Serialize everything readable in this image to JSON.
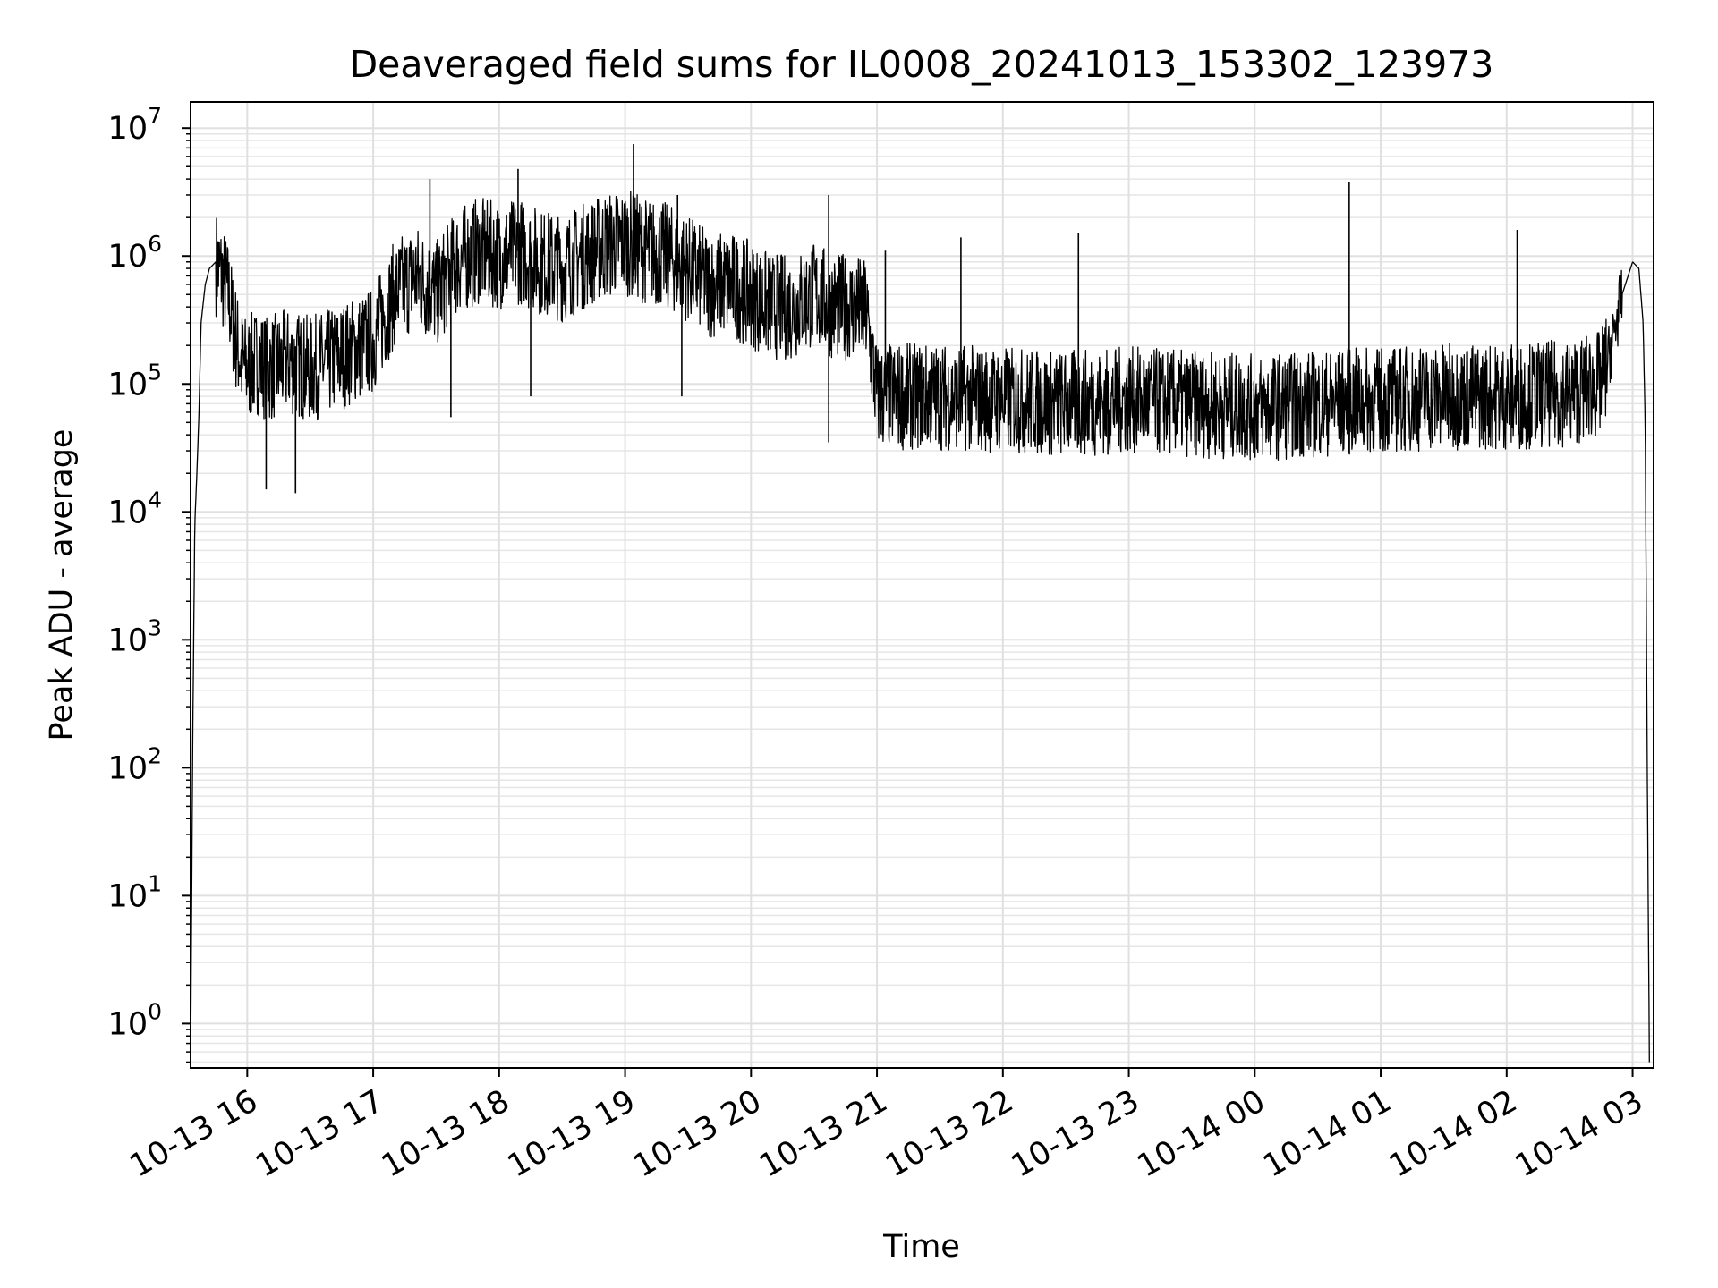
{
  "chart_data": {
    "type": "line",
    "title": "Deaveraged field sums for IL0008_20241013_153302_123973",
    "xlabel": "Time",
    "ylabel": "Peak ADU - average",
    "yscale": "log",
    "ylim": [
      0.45,
      16000000
    ],
    "xlim": [
      "2024-10-13 15:33",
      "2024-10-14 03:10"
    ],
    "x_ticks": [
      "10-13 16",
      "10-13 17",
      "10-13 18",
      "10-13 19",
      "10-13 20",
      "10-13 21",
      "10-13 22",
      "10-13 23",
      "10-14 00",
      "10-14 01",
      "10-14 02",
      "10-14 03"
    ],
    "y_ticks": [
      {
        "base": "10",
        "exp": "0",
        "value": 1
      },
      {
        "base": "10",
        "exp": "1",
        "value": 10
      },
      {
        "base": "10",
        "exp": "2",
        "value": 100
      },
      {
        "base": "10",
        "exp": "3",
        "value": 1000
      },
      {
        "base": "10",
        "exp": "4",
        "value": 10000
      },
      {
        "base": "10",
        "exp": "5",
        "value": 100000
      },
      {
        "base": "10",
        "exp": "6",
        "value": 1000000
      },
      {
        "base": "10",
        "exp": "7",
        "value": 10000000
      }
    ],
    "grid": true,
    "series": [
      {
        "color": "#000000",
        "x": [
          "2024-10-13 15:33",
          "2024-10-13 15:34",
          "2024-10-13 15:35",
          "2024-10-13 15:36",
          "2024-10-13 15:37",
          "2024-10-13 15:38",
          "2024-10-13 15:40",
          "2024-10-13 15:42",
          "2024-10-13 15:45",
          "2024-10-13 15:48",
          "2024-10-13 15:51",
          "2024-10-13 15:54",
          "2024-10-13 15:57",
          "2024-10-13 16:00",
          "2024-10-13 16:05",
          "2024-10-13 16:10",
          "2024-10-13 16:15",
          "2024-10-13 16:20",
          "2024-10-13 16:30",
          "2024-10-13 16:40",
          "2024-10-13 16:50",
          "2024-10-13 17:00",
          "2024-10-13 17:10",
          "2024-10-13 17:20",
          "2024-10-13 17:30",
          "2024-10-13 17:40",
          "2024-10-13 17:50",
          "2024-10-13 18:00",
          "2024-10-13 18:10",
          "2024-10-13 18:20",
          "2024-10-13 18:30",
          "2024-10-13 18:40",
          "2024-10-13 18:50",
          "2024-10-13 19:00",
          "2024-10-13 19:10",
          "2024-10-13 19:20",
          "2024-10-13 19:30",
          "2024-10-13 19:40",
          "2024-10-13 19:50",
          "2024-10-13 20:00",
          "2024-10-13 20:10",
          "2024-10-13 20:20",
          "2024-10-13 20:30",
          "2024-10-13 20:40",
          "2024-10-13 20:50",
          "2024-10-13 20:55",
          "2024-10-13 21:00",
          "2024-10-13 21:30",
          "2024-10-13 22:00",
          "2024-10-13 22:30",
          "2024-10-13 23:00",
          "2024-10-13 23:30",
          "2024-10-14 00:00",
          "2024-10-14 00:30",
          "2024-10-14 01:00",
          "2024-10-14 01:30",
          "2024-10-14 02:00",
          "2024-10-14 02:30",
          "2024-10-14 02:45",
          "2024-10-14 02:50",
          "2024-10-14 02:55",
          "2024-10-14 03:00",
          "2024-10-14 03:03",
          "2024-10-14 03:05",
          "2024-10-14 03:06",
          "2024-10-14 03:07",
          "2024-10-14 03:08"
        ],
        "y": [
          0.5,
          150,
          8000,
          20000,
          60000,
          300000,
          600000,
          800000,
          900000,
          700000,
          500000,
          250000,
          150000,
          130000,
          150000,
          130000,
          140000,
          150000,
          130000,
          150000,
          180000,
          220000,
          500000,
          700000,
          500000,
          900000,
          1100000,
          1000000,
          1100000,
          900000,
          800000,
          1000000,
          1200000,
          1300000,
          1100000,
          1000000,
          800000,
          600000,
          600000,
          500000,
          400000,
          400000,
          500000,
          400000,
          400000,
          350000,
          80000,
          80000,
          75000,
          70000,
          75000,
          70000,
          65000,
          70000,
          75000,
          80000,
          80000,
          85000,
          100000,
          200000,
          500000,
          900000,
          800000,
          300000,
          50000,
          100,
          0.5
        ],
        "spikes": [
          {
            "x": "2024-10-13 15:46",
            "y": 1300000
          },
          {
            "x": "2024-10-13 16:09",
            "y": 15000
          },
          {
            "x": "2024-10-13 16:23",
            "y": 14000
          },
          {
            "x": "2024-10-13 17:27",
            "y": 4000000
          },
          {
            "x": "2024-10-13 17:37",
            "y": 55000
          },
          {
            "x": "2024-10-13 18:09",
            "y": 4800000
          },
          {
            "x": "2024-10-13 18:15",
            "y": 80000
          },
          {
            "x": "2024-10-13 19:04",
            "y": 7500000
          },
          {
            "x": "2024-10-13 19:25",
            "y": 3000000
          },
          {
            "x": "2024-10-13 19:27",
            "y": 80000
          },
          {
            "x": "2024-10-13 20:37",
            "y": 3000000
          },
          {
            "x": "2024-10-13 20:37",
            "y": 35000
          },
          {
            "x": "2024-10-13 21:04",
            "y": 1100000
          },
          {
            "x": "2024-10-13 21:40",
            "y": 1400000
          },
          {
            "x": "2024-10-13 22:36",
            "y": 1500000
          },
          {
            "x": "2024-10-13 22:50",
            "y": 28000
          },
          {
            "x": "2024-10-14 00:45",
            "y": 3800000
          },
          {
            "x": "2024-10-14 02:05",
            "y": 1600000
          }
        ]
      }
    ]
  }
}
